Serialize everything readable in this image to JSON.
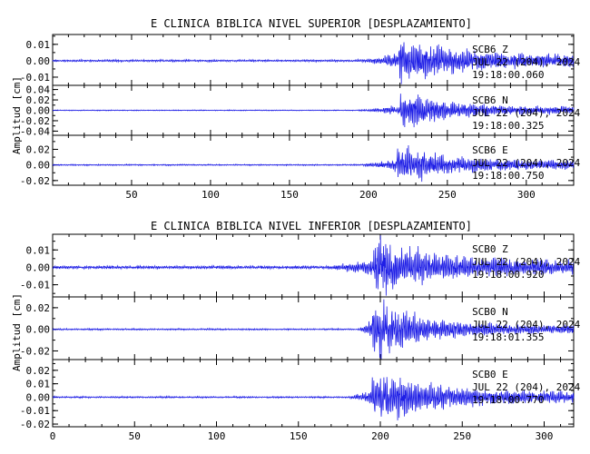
{
  "figure": {
    "trace_color": "#1f1fe6",
    "xlim": [
      0,
      330
    ],
    "xticks": [
      50,
      100,
      150,
      200,
      250,
      300
    ]
  },
  "chart_data": [
    {
      "type": "line",
      "title": "E CLINICA BIBLICA NIVEL SUPERIOR [DESPLAZAMIENTO]",
      "ylabel": "Amplitud [cm]",
      "xlim": [
        0,
        330
      ],
      "xticks": [
        50,
        100,
        150,
        200,
        250,
        300
      ],
      "panels": [
        {
          "name": "Z",
          "station": "SCB6",
          "channel": "Z",
          "date": "JUL 22 (204), 2024",
          "time": "19:18:00.060",
          "ylim": [
            -0.015,
            0.016
          ],
          "yticks": [
            -0.01,
            0.0,
            0.01
          ],
          "ytick_labels": [
            "-0.01",
            "0.00",
            "0.01"
          ],
          "envelope": {
            "onset": 188,
            "peak": 223,
            "peak_amp": 0.013,
            "noise": 0.0006,
            "decay": 35,
            "coda_amp": 0.0035
          }
        },
        {
          "name": "N",
          "station": "SCB6",
          "channel": "N",
          "date": "JUL 22 (204), 2024",
          "time": "19:18:00.325",
          "ylim": [
            -0.048,
            0.048
          ],
          "yticks": [
            -0.04,
            -0.02,
            0.0,
            0.02,
            0.04
          ],
          "ytick_labels": [
            "-0.04",
            "-0.02",
            "0.00",
            "0.02",
            "0.04"
          ],
          "envelope": {
            "onset": 188,
            "peak": 224,
            "peak_amp": 0.03,
            "noise": 0.0008,
            "decay": 32,
            "coda_amp": 0.006
          }
        },
        {
          "name": "E",
          "station": "SCB6",
          "channel": "E",
          "date": "JUL 22 (204), 2024",
          "time": "19:18:00.750",
          "ylim": [
            -0.026,
            0.038
          ],
          "yticks": [
            -0.02,
            0.0,
            0.02
          ],
          "ytick_labels": [
            "-0.02",
            "0.00",
            "0.02"
          ],
          "envelope": {
            "onset": 188,
            "peak": 222,
            "peak_amp": 0.022,
            "noise": 0.0008,
            "decay": 32,
            "coda_amp": 0.005
          }
        }
      ]
    },
    {
      "type": "line",
      "title": "E CLINICA BIBLICA NIVEL INFERIOR [DESPLAZAMIENTO]",
      "ylabel": "Amplitud [cm]",
      "xlim": [
        0,
        318
      ],
      "xticks": [
        0,
        50,
        100,
        150,
        200,
        250,
        300
      ],
      "panels": [
        {
          "name": "Z",
          "station": "SCB0",
          "channel": "Z",
          "date": "JUL 22 (204), 2024",
          "time": "19:18:00.920",
          "ylim": [
            -0.017,
            0.019
          ],
          "yticks": [
            -0.01,
            0.0,
            0.01
          ],
          "ytick_labels": [
            "-0.01",
            "0.00",
            "0.01"
          ],
          "envelope": {
            "onset": 163,
            "peak": 200,
            "peak_amp": 0.016,
            "noise": 0.0009,
            "decay": 30,
            "coda_amp": 0.004
          }
        },
        {
          "name": "N",
          "station": "SCB0",
          "channel": "N",
          "date": "JUL 22 (204), 2024",
          "time": "19:18:01.355",
          "ylim": [
            -0.028,
            0.03
          ],
          "yticks": [
            -0.02,
            0.0,
            0.02
          ],
          "ytick_labels": [
            "-0.02",
            "0.00",
            "0.02"
          ],
          "envelope": {
            "onset": 185,
            "peak": 199,
            "peak_amp": 0.027,
            "noise": 0.0007,
            "decay": 24,
            "coda_amp": 0.004
          }
        },
        {
          "name": "E",
          "station": "SCB0",
          "channel": "E",
          "date": "JUL 22 (204), 2024",
          "time": "19:18:00.770",
          "ylim": [
            -0.022,
            0.028
          ],
          "yticks": [
            -0.02,
            -0.01,
            0.0,
            0.01,
            0.02
          ],
          "ytick_labels": [
            "-0.02",
            "-0.01",
            "0.00",
            "0.01",
            "0.02"
          ],
          "envelope": {
            "onset": 178,
            "peak": 199,
            "peak_amp": 0.02,
            "noise": 0.0006,
            "decay": 30,
            "coda_amp": 0.004
          }
        }
      ]
    }
  ]
}
